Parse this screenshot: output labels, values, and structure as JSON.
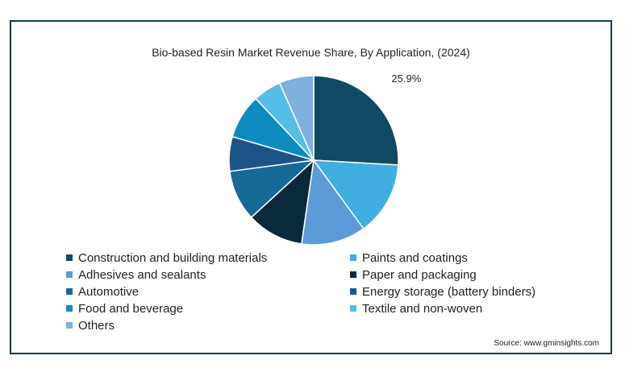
{
  "chart_data": {
    "type": "pie",
    "title": "Bio-based Resin Market Revenue Share, By Application, (2024)",
    "slices": [
      {
        "label": "Construction and building materials",
        "value": 25.9,
        "color": "#0e4b63"
      },
      {
        "label": "Paints and coatings",
        "value": 14.1,
        "color": "#40aee0"
      },
      {
        "label": "Adhesives and sealants",
        "value": 12.3,
        "color": "#5b9bd8"
      },
      {
        "label": "Paper and packaging",
        "value": 10.9,
        "color": "#0a2a3c"
      },
      {
        "label": "Automotive",
        "value": 9.7,
        "color": "#176a97"
      },
      {
        "label": "Energy storage (battery binders)",
        "value": 6.6,
        "color": "#1d5488"
      },
      {
        "label": "Food and beverage",
        "value": 8.5,
        "color": "#0c8cbe"
      },
      {
        "label": "Textile and non-woven",
        "value": 5.4,
        "color": "#56bde8"
      },
      {
        "label": "Others",
        "value": 6.6,
        "color": "#7eb0e0"
      }
    ],
    "data_labels": [
      {
        "slice": "Construction and building materials",
        "text": "25.9%"
      }
    ],
    "legend_position": "bottom"
  },
  "footer": {
    "source": "Source: www.gminsights.com"
  }
}
